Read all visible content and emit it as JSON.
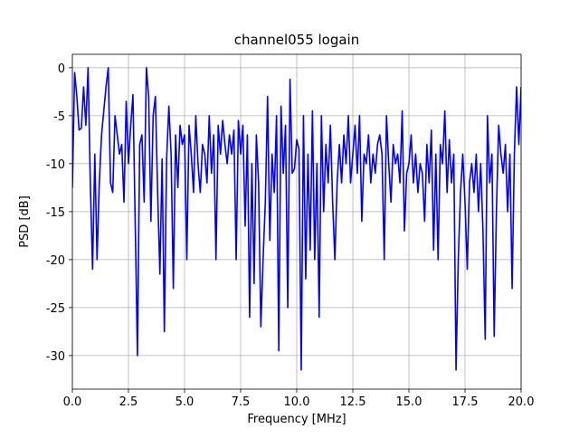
{
  "chart_data": {
    "type": "line",
    "title": "channel055 logain",
    "x_label": "Frequency [MHz]",
    "y_label": "PSD [dB]",
    "color": "#0000ff",
    "grid": true,
    "xlim": [
      0,
      20
    ],
    "ylim": [
      -33.5,
      1.4
    ],
    "xticks": [
      {
        "value": 0,
        "label": "0.0"
      },
      {
        "value": 2.5,
        "label": "2.5"
      },
      {
        "value": 5,
        "label": "5.0"
      },
      {
        "value": 7.5,
        "label": "7.5"
      },
      {
        "value": 10,
        "label": "10.0"
      },
      {
        "value": 12.5,
        "label": "12.5"
      },
      {
        "value": 15,
        "label": "15.0"
      },
      {
        "value": 17.5,
        "label": "17.5"
      },
      {
        "value": 20,
        "label": "20.0"
      }
    ],
    "yticks": [
      0,
      -5,
      -10,
      -15,
      -20,
      -25,
      -30
    ],
    "x": [
      0,
      0.1,
      0.2,
      0.3,
      0.4,
      0.5,
      0.6,
      0.7,
      0.8,
      0.9,
      1,
      1.1,
      1.2,
      1.3,
      1.4,
      1.5,
      1.6,
      1.7,
      1.8,
      1.9,
      2,
      2.1,
      2.2,
      2.3,
      2.4,
      2.5,
      2.6,
      2.7,
      2.8,
      2.9,
      3,
      3.1,
      3.2,
      3.3,
      3.4,
      3.5,
      3.6,
      3.7,
      3.8,
      3.9,
      4,
      4.1,
      4.2,
      4.3,
      4.4,
      4.5,
      4.6,
      4.7,
      4.8,
      4.9,
      5,
      5.1,
      5.2,
      5.3,
      5.4,
      5.5,
      5.6,
      5.7,
      5.8,
      5.9,
      6,
      6.1,
      6.2,
      6.3,
      6.4,
      6.5,
      6.6,
      6.7,
      6.8,
      6.9,
      7,
      7.1,
      7.2,
      7.3,
      7.4,
      7.5,
      7.6,
      7.7,
      7.8,
      7.9,
      8,
      8.1,
      8.2,
      8.3,
      8.4,
      8.5,
      8.6,
      8.7,
      8.8,
      8.9,
      9,
      9.1,
      9.2,
      9.3,
      9.4,
      9.5,
      9.6,
      9.7,
      9.8,
      9.9,
      10,
      10.1,
      10.2,
      10.3,
      10.4,
      10.5,
      10.6,
      10.7,
      10.8,
      10.9,
      11,
      11.1,
      11.2,
      11.3,
      11.4,
      11.5,
      11.6,
      11.7,
      11.8,
      11.9,
      12,
      12.1,
      12.2,
      12.3,
      12.4,
      12.5,
      12.6,
      12.7,
      12.8,
      12.9,
      13,
      13.1,
      13.2,
      13.3,
      13.4,
      13.5,
      13.6,
      13.7,
      13.8,
      13.9,
      14,
      14.1,
      14.2,
      14.3,
      14.4,
      14.5,
      14.6,
      14.7,
      14.8,
      14.9,
      15,
      15.1,
      15.2,
      15.3,
      15.4,
      15.5,
      15.6,
      15.7,
      15.8,
      15.9,
      16,
      16.1,
      16.2,
      16.3,
      16.4,
      16.5,
      16.6,
      16.7,
      16.8,
      16.9,
      17,
      17.1,
      17.2,
      17.3,
      17.4,
      17.5,
      17.6,
      17.7,
      17.8,
      17.9,
      18,
      18.1,
      18.2,
      18.3,
      18.4,
      18.5,
      18.6,
      18.7,
      18.8,
      18.9,
      19,
      19.1,
      19.2,
      19.3,
      19.4,
      19.5,
      19.6,
      19.7,
      19.8,
      19.9,
      20
    ],
    "values": [
      -12.5,
      -0.5,
      -3,
      -6.5,
      -6.3,
      -2,
      -6,
      0,
      -12,
      -21,
      -9,
      -20,
      -12,
      -7,
      -4.5,
      -2,
      0,
      -12,
      -13,
      -5,
      -7,
      -9,
      -8,
      -14,
      -3.5,
      -10,
      -6,
      -2.8,
      -16,
      -30,
      -8,
      -7,
      -14,
      0,
      -3,
      -16,
      -5,
      -3,
      -13,
      -21.5,
      -9.5,
      -27.5,
      -9.5,
      -4,
      -9,
      -23,
      -7,
      -12.5,
      -6,
      -8,
      -7,
      -20,
      -6,
      -9,
      -13,
      -5,
      -10,
      -13,
      -8,
      -9,
      -12,
      -5,
      -11,
      -7,
      -20,
      -6,
      -9,
      -5.5,
      -8,
      -10,
      -7,
      -9,
      -6.5,
      -20,
      -5.5,
      -9,
      -6,
      -16.5,
      -7,
      -26,
      -10,
      -22.5,
      -7,
      -12,
      -27,
      -20,
      -14,
      -3,
      -18,
      -9,
      -13,
      -5,
      -29.5,
      -4,
      -11,
      -6,
      -25,
      -1.2,
      -11,
      -10.5,
      -7.5,
      -8.5,
      -31.5,
      -5,
      -22,
      -9,
      -19,
      -4.5,
      -20,
      -10,
      -26,
      -5,
      -15,
      -8,
      -12,
      -6,
      -14,
      -20,
      -12,
      -8,
      -12,
      -7,
      -10,
      -5,
      -12,
      -9,
      -6,
      -11,
      -5,
      -16,
      -9,
      -10,
      -7,
      -12,
      -9,
      -11,
      -8,
      -7,
      -9,
      -20,
      -5,
      -10,
      -14,
      -8,
      -10,
      -9,
      -12,
      -4.5,
      -17,
      -11,
      -10,
      -7,
      -12,
      -9,
      -13,
      -10,
      -11,
      -16,
      -8,
      -12,
      -6.5,
      -19,
      -9,
      -20,
      -8,
      -10,
      -4.5,
      -13,
      -7.5,
      -12,
      -9,
      -31.5,
      -20,
      -13,
      -9,
      -14,
      -21,
      -12,
      -10,
      -13,
      -9,
      -15,
      -10,
      -17,
      -28.3,
      -5,
      -12,
      -9,
      -28,
      -15,
      -6,
      -9,
      -11,
      -8,
      -15,
      -9,
      -23,
      -9,
      -2,
      -8,
      -2
    ]
  }
}
